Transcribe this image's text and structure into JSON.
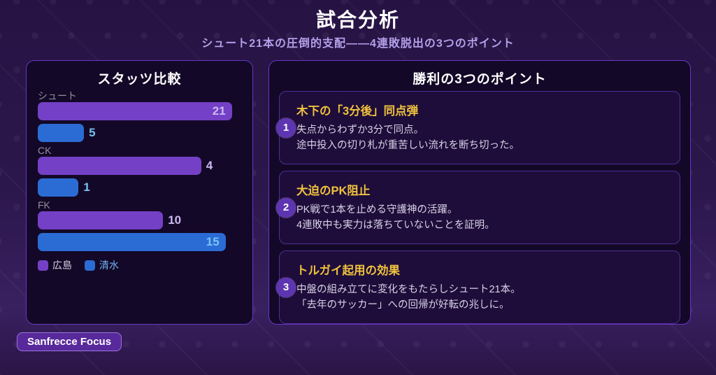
{
  "header": {
    "title": "試合分析",
    "subtitle": "シュート21本の圧倒的支配——4連敗脱出の3つのポイント"
  },
  "stats_panel": {
    "title": "スタッツ比較"
  },
  "chart_data": {
    "type": "bar",
    "orientation": "horizontal",
    "title": "スタッツ比較",
    "categories": [
      "シュート",
      "CK",
      "FK"
    ],
    "category_keys": [
      "shots",
      "corner-kicks",
      "free-kicks"
    ],
    "series": [
      {
        "key": "hiroshima",
        "name": "広島",
        "color": "#7440c6",
        "label_color": "#cdb9f0",
        "values": [
          21,
          4,
          10
        ]
      },
      {
        "key": "shimizu",
        "name": "清水",
        "color": "#2b6cd4",
        "label_color": "#78c2f5",
        "values": [
          5,
          1,
          15
        ]
      }
    ],
    "value_labels": true,
    "scale": "per-row-normalized",
    "grid": false,
    "legend_position": "bottom"
  },
  "points_panel": {
    "title": "勝利の3つのポイント",
    "cards": [
      {
        "number": "1",
        "title": "木下の「3分後」同点弾",
        "line1": "失点からわずか3分で同点。",
        "line2": "途中投入の切り札が重苦しい流れを断ち切った。"
      },
      {
        "number": "2",
        "title": "大迫のPK阻止",
        "line1": "PK戦で1本を止める守護神の活躍。",
        "line2": "4連敗中も実力は落ちていないことを証明。"
      },
      {
        "number": "3",
        "title": "トルガイ起用の効果",
        "line1": "中盤の組み立てに変化をもたらしシュート21本。",
        "line2": "「去年のサッカー」への回帰が好転の兆しに。"
      }
    ]
  },
  "footer": {
    "badge_label": "Sanfrecce Focus"
  },
  "theme": {
    "background_top": "#271343",
    "background_bottom": "#392060",
    "panel_background": "#130827",
    "panel_border": "#6638c6",
    "card_background": "#1e0d3a",
    "card_border": "#4e2e95",
    "badge_purple": "#5e35b1",
    "heading_gold": "#f0c23d",
    "body_text": "#d8d1e6",
    "subtitle_text": "#b3a0e8"
  }
}
